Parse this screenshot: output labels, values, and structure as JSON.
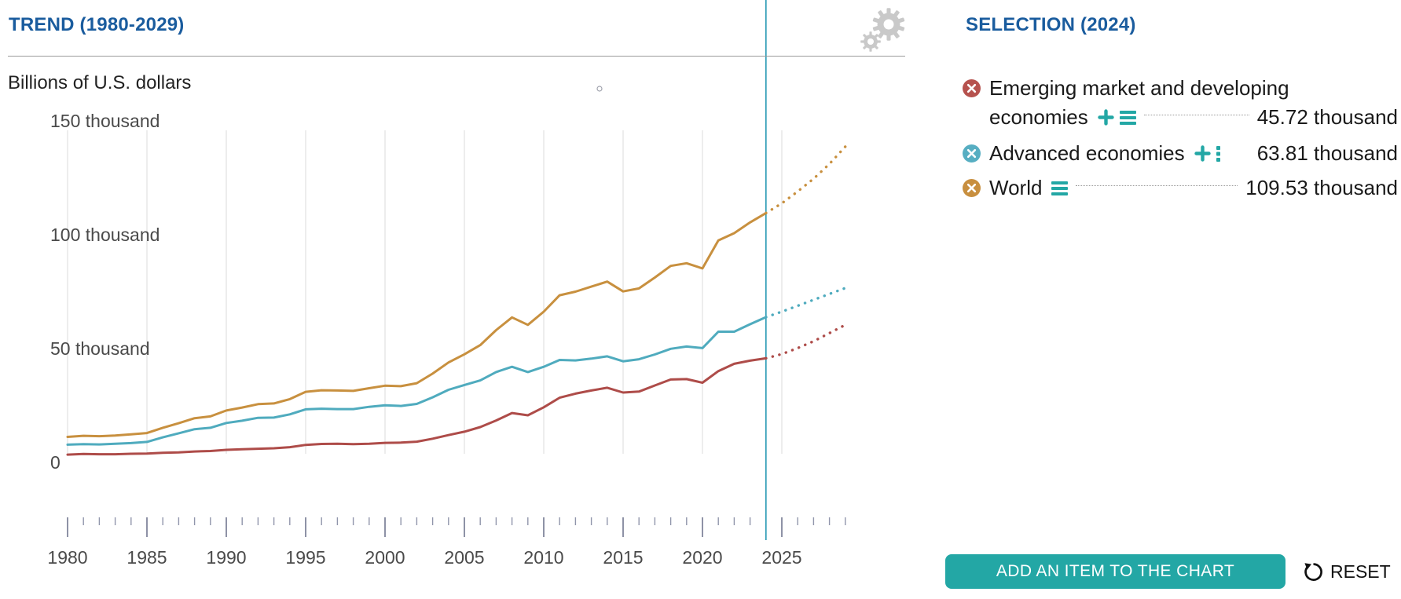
{
  "trend_panel": {
    "title": "TREND (1980-2029)",
    "unit_label": "Billions of U.S. dollars"
  },
  "selection_panel": {
    "title": "SELECTION (2024)",
    "items": [
      {
        "id": "emerging",
        "label": "Emerging market and developing economies",
        "label_line1": "Emerging market and developing",
        "label_line2": "economies",
        "value": "45.72 thousand",
        "color": "#b6524e"
      },
      {
        "id": "advanced",
        "label": "Advanced economies",
        "value": "63.81 thousand",
        "color": "#57aec2"
      },
      {
        "id": "world",
        "label": "World",
        "value": "109.53 thousand",
        "color": "#c88f3f"
      }
    ],
    "add_item_button": "ADD AN ITEM TO THE CHART",
    "reset_button": "RESET"
  },
  "colors": {
    "accent_teal": "#23a7a5",
    "title_blue": "#1a5c9e",
    "current_year_line": "#2d9cb5",
    "gridline": "#e3e3e3",
    "axis_text": "#4a4a4a"
  },
  "chart_data": {
    "type": "line",
    "title": "TREND (1980-2029)",
    "ylabel": "Billions of U.S. dollars",
    "unit": "thousand (= trillions of U.S. dollars)",
    "ylim": [
      0,
      157
    ],
    "grid": "vertical-only",
    "current_year": 2024,
    "forecast_from": 2024,
    "x_tick_years": [
      1980,
      1985,
      1990,
      1995,
      2000,
      2005,
      2010,
      2015,
      2020,
      2025
    ],
    "y_ticks": [
      {
        "value": 150,
        "label": "150 thousand"
      },
      {
        "value": 100,
        "label": "100 thousand"
      },
      {
        "value": 50,
        "label": "50 thousand"
      },
      {
        "value": 0,
        "label": "0"
      }
    ],
    "years": [
      1980,
      1981,
      1982,
      1983,
      1984,
      1985,
      1986,
      1987,
      1988,
      1989,
      1990,
      1991,
      1992,
      1993,
      1994,
      1995,
      1996,
      1997,
      1998,
      1999,
      2000,
      2001,
      2002,
      2003,
      2004,
      2005,
      2006,
      2007,
      2008,
      2009,
      2010,
      2011,
      2012,
      2013,
      2014,
      2015,
      2016,
      2017,
      2018,
      2019,
      2020,
      2021,
      2022,
      2023,
      2024,
      2025,
      2026,
      2027,
      2028,
      2029
    ],
    "series": [
      {
        "id": "world",
        "name": "World",
        "color": "#c8903f",
        "value_2024": "109.53 thousand",
        "values": [
          11.2,
          11.7,
          11.5,
          11.8,
          12.3,
          12.9,
          15.2,
          17.2,
          19.4,
          20.2,
          22.8,
          24.1,
          25.6,
          25.9,
          27.8,
          31.0,
          31.7,
          31.6,
          31.4,
          32.6,
          33.7,
          33.5,
          34.8,
          39.0,
          43.9,
          47.5,
          51.5,
          58.1,
          63.7,
          60.4,
          66.2,
          73.4,
          75.0,
          77.2,
          79.4,
          75.1,
          76.4,
          81.2,
          86.3,
          87.5,
          85.2,
          97.5,
          100.7,
          105.4,
          109.53,
          113.8,
          119.0,
          124.6,
          131.1,
          138.7
        ]
      },
      {
        "id": "advanced",
        "name": "Advanced economies",
        "color": "#4fabbe",
        "value_2024": "63.81 thousand",
        "values": [
          7.8,
          8.0,
          7.9,
          8.2,
          8.5,
          9.0,
          11.0,
          12.8,
          14.6,
          15.2,
          17.3,
          18.3,
          19.6,
          19.7,
          21.1,
          23.3,
          23.6,
          23.4,
          23.4,
          24.4,
          25.1,
          24.8,
          25.7,
          28.6,
          31.9,
          34.0,
          36.0,
          39.7,
          42.0,
          39.7,
          42.0,
          45.0,
          44.8,
          45.6,
          46.6,
          44.4,
          45.3,
          47.4,
          49.9,
          50.9,
          50.2,
          57.4,
          57.4,
          60.7,
          63.81,
          66.2,
          68.8,
          71.4,
          74.0,
          76.6
        ]
      },
      {
        "id": "emerging",
        "name": "Emerging market and developing economies",
        "color": "#ae4c49",
        "value_2024": "45.72 thousand",
        "values": [
          3.4,
          3.7,
          3.6,
          3.6,
          3.8,
          3.9,
          4.2,
          4.4,
          4.8,
          5.0,
          5.5,
          5.8,
          6.0,
          6.2,
          6.7,
          7.7,
          8.1,
          8.2,
          8.0,
          8.2,
          8.6,
          8.7,
          9.1,
          10.4,
          12.0,
          13.5,
          15.5,
          18.4,
          21.7,
          20.7,
          24.2,
          28.4,
          30.2,
          31.6,
          32.8,
          30.7,
          31.1,
          33.8,
          36.4,
          36.6,
          35.0,
          40.1,
          43.3,
          44.7,
          45.72,
          47.6,
          50.2,
          53.2,
          56.8,
          60.4
        ]
      }
    ],
    "legend_position": "right-panel"
  }
}
